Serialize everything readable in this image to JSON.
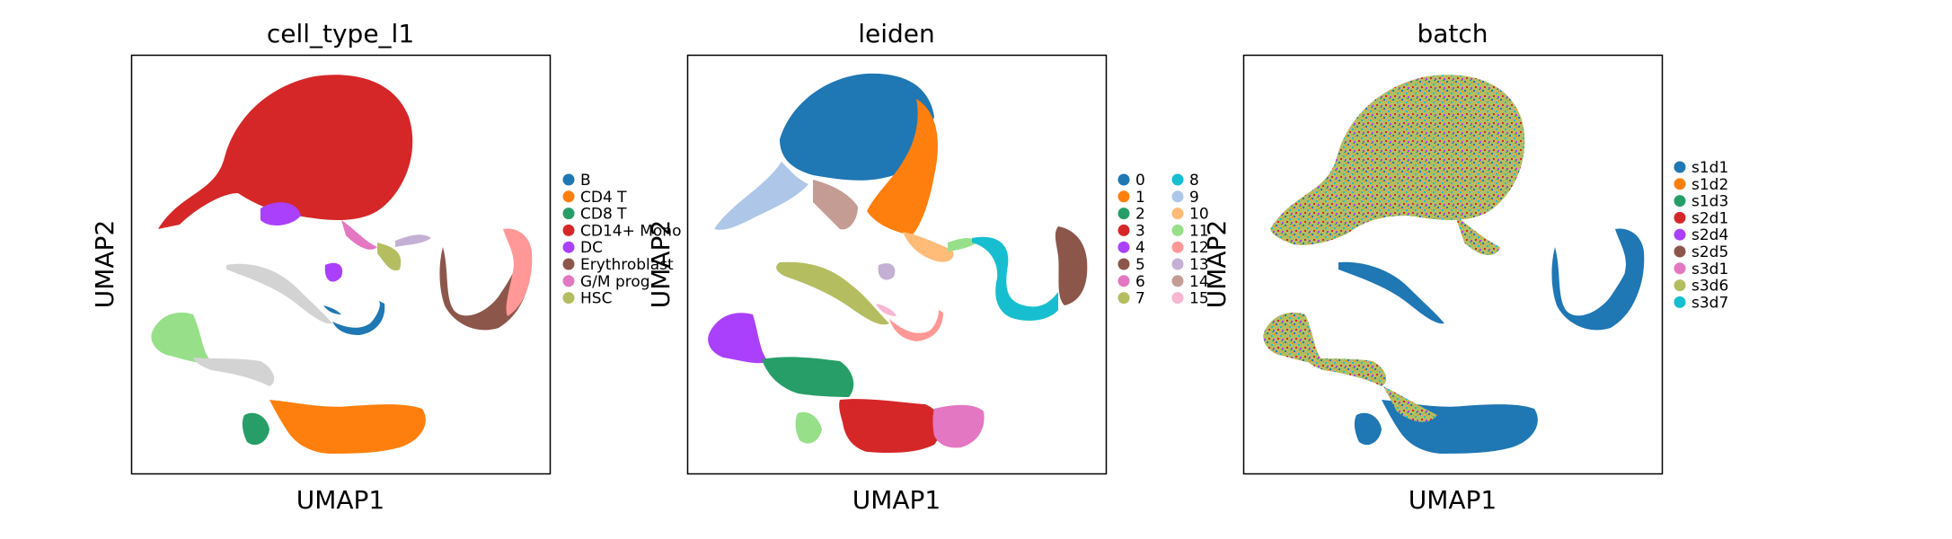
{
  "chart_data": [
    {
      "type": "scatter",
      "title": "cell_type_l1",
      "xlabel": "UMAP1",
      "ylabel": "UMAP2",
      "grid": false,
      "legend_position": "right",
      "legend": [
        {
          "label": "B",
          "color": "#1f77b4"
        },
        {
          "label": "CD4 T",
          "color": "#ff7f0e"
        },
        {
          "label": "CD8 T",
          "color": "#279e68"
        },
        {
          "label": "CD14+ Mono",
          "color": "#d62728"
        },
        {
          "label": "DC",
          "color": "#aa40fc"
        },
        {
          "label": "Erythroblast",
          "color": "#8c564b"
        },
        {
          "label": "G/M prog",
          "color": "#e377c2"
        },
        {
          "label": "HSC",
          "color": "#b5bd61"
        }
      ]
    },
    {
      "type": "scatter",
      "title": "leiden",
      "xlabel": "UMAP1",
      "ylabel": "UMAP2",
      "grid": false,
      "legend_position": "right",
      "legend": [
        {
          "label": "0",
          "color": "#1f77b4"
        },
        {
          "label": "1",
          "color": "#ff7f0e"
        },
        {
          "label": "2",
          "color": "#279e68"
        },
        {
          "label": "3",
          "color": "#d62728"
        },
        {
          "label": "4",
          "color": "#aa40fc"
        },
        {
          "label": "5",
          "color": "#8c564b"
        },
        {
          "label": "6",
          "color": "#e377c2"
        },
        {
          "label": "7",
          "color": "#b5bd61"
        },
        {
          "label": "8",
          "color": "#17becf"
        },
        {
          "label": "9",
          "color": "#aec7e8"
        },
        {
          "label": "10",
          "color": "#ffbb78"
        },
        {
          "label": "11",
          "color": "#98df8a"
        },
        {
          "label": "12",
          "color": "#ff9896"
        },
        {
          "label": "13",
          "color": "#c5b0d5"
        },
        {
          "label": "14",
          "color": "#c49c94"
        },
        {
          "label": "15",
          "color": "#f7b6d2"
        }
      ]
    },
    {
      "type": "scatter",
      "title": "batch",
      "xlabel": "UMAP1",
      "ylabel": "UMAP2",
      "grid": false,
      "legend_position": "right",
      "legend": [
        {
          "label": "s1d1",
          "color": "#1f77b4"
        },
        {
          "label": "s1d2",
          "color": "#ff7f0e"
        },
        {
          "label": "s1d3",
          "color": "#279e68"
        },
        {
          "label": "s2d1",
          "color": "#d62728"
        },
        {
          "label": "s2d4",
          "color": "#aa40fc"
        },
        {
          "label": "s2d5",
          "color": "#8c564b"
        },
        {
          "label": "s3d1",
          "color": "#e377c2"
        },
        {
          "label": "s3d6",
          "color": "#b5bd61"
        },
        {
          "label": "s3d7",
          "color": "#17becf"
        }
      ]
    }
  ]
}
